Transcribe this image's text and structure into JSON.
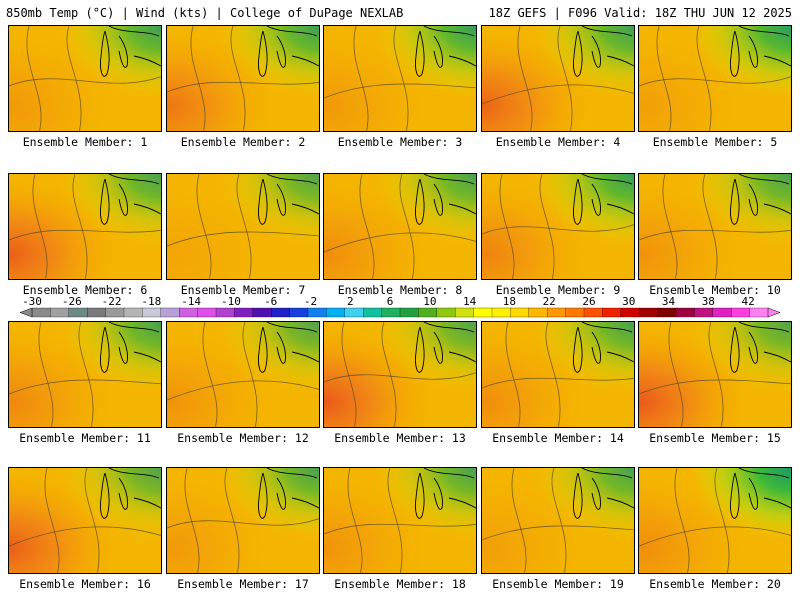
{
  "header": {
    "left": "850mb Temp (°C) | Wind (kts) | College of DuPage NEXLAB",
    "right": "18Z GEFS | F096 Valid: 18Z THU JUN 12 2025"
  },
  "caption_prefix": "Ensemble Member:",
  "members": [
    {
      "label": "Ensemble Member: 1",
      "hot": 0.25,
      "cool": 0.45
    },
    {
      "label": "Ensemble Member: 2",
      "hot": 0.55,
      "cool": 0.45
    },
    {
      "label": "Ensemble Member: 3",
      "hot": 0.25,
      "cool": 0.5
    },
    {
      "label": "Ensemble Member: 4",
      "hot": 0.7,
      "cool": 0.45
    },
    {
      "label": "Ensemble Member: 5",
      "hot": 0.2,
      "cool": 0.55
    },
    {
      "label": "Ensemble Member: 6",
      "hot": 0.75,
      "cool": 0.4
    },
    {
      "label": "Ensemble Member: 7",
      "hot": 0.15,
      "cool": 0.35
    },
    {
      "label": "Ensemble Member: 8",
      "hot": 0.35,
      "cool": 0.4
    },
    {
      "label": "Ensemble Member: 9",
      "hot": 0.45,
      "cool": 0.5
    },
    {
      "label": "Ensemble Member: 10",
      "hot": 0.3,
      "cool": 0.4
    },
    {
      "label": "Ensemble Member: 11",
      "hot": 0.4,
      "cool": 0.4
    },
    {
      "label": "Ensemble Member: 12",
      "hot": 0.3,
      "cool": 0.35
    },
    {
      "label": "Ensemble Member: 13",
      "hot": 0.8,
      "cool": 0.35
    },
    {
      "label": "Ensemble Member: 14",
      "hot": 0.35,
      "cool": 0.4
    },
    {
      "label": "Ensemble Member: 15",
      "hot": 0.8,
      "cool": 0.35
    },
    {
      "label": "Ensemble Member: 16",
      "hot": 0.75,
      "cool": 0.35
    },
    {
      "label": "Ensemble Member: 17",
      "hot": 0.25,
      "cool": 0.4
    },
    {
      "label": "Ensemble Member: 18",
      "hot": 0.3,
      "cool": 0.4
    },
    {
      "label": "Ensemble Member: 19",
      "hot": 0.2,
      "cool": 0.4
    },
    {
      "label": "Ensemble Member: 20",
      "hot": 0.35,
      "cool": 0.7
    }
  ],
  "colorbar": {
    "labels": [
      "-30",
      "-26",
      "-22",
      "-18",
      "-14",
      "-10",
      "-6",
      "-2",
      "2",
      "6",
      "10",
      "14",
      "18",
      "22",
      "26",
      "30",
      "34",
      "38",
      "42"
    ],
    "min": -30,
    "max": 44,
    "step": 2,
    "colors": [
      "#8a8a8a",
      "#a0a0a0",
      "#6f8a84",
      "#7a7a7a",
      "#9a9a9a",
      "#b4b4b4",
      "#c8c8d8",
      "#b8a0d8",
      "#d060e0",
      "#e050e8",
      "#b040d0",
      "#8020c0",
      "#5010b0",
      "#2020c8",
      "#1840e0",
      "#1080f0",
      "#00b0f0",
      "#40d0f0",
      "#10c0a0",
      "#20b060",
      "#20a040",
      "#50b020",
      "#90c810",
      "#d0e010",
      "#ffff00",
      "#fff000",
      "#ffd800",
      "#ffb800",
      "#ff9800",
      "#ff7800",
      "#ff5000",
      "#f02000",
      "#d00000",
      "#a00000",
      "#800000",
      "#a00040",
      "#c01080",
      "#e020c0",
      "#ff40e0",
      "#ff80f0"
    ]
  },
  "palette": {
    "cool_dark": "#1a9a6a",
    "cool_mid": "#3cb838",
    "cool_light": "#a8d818",
    "mild": "#e4e800",
    "base": "#f5c000",
    "warm": "#f4a000",
    "hot": "#f07020",
    "very_hot": "#e84020",
    "contour": "#5a4a2a",
    "coast": "#000000"
  }
}
